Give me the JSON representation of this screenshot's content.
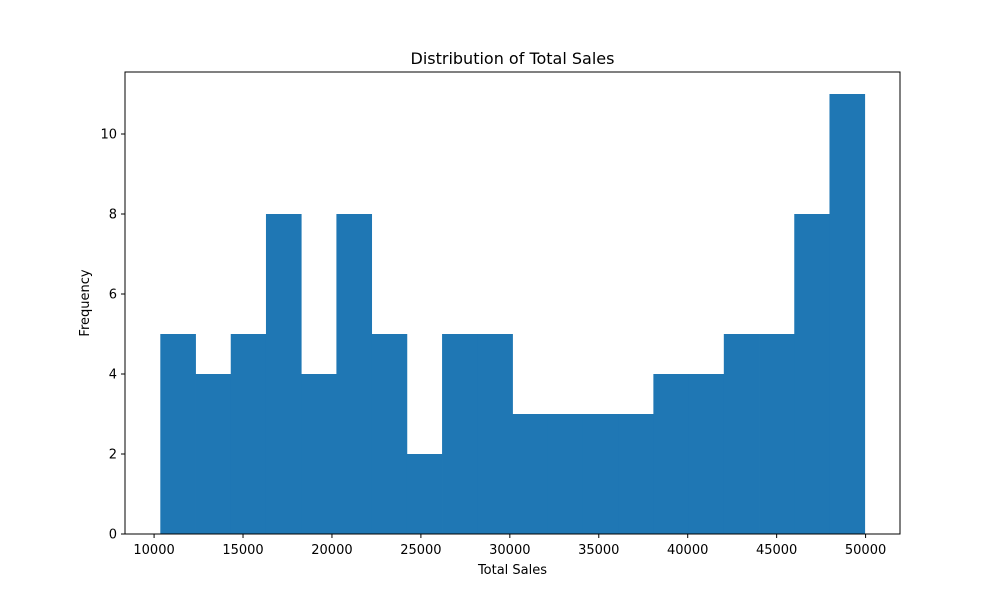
{
  "chart_data": {
    "type": "bar",
    "title": "Distribution of Total Sales",
    "xlabel": "Total Sales",
    "ylabel": "Frequency",
    "bin_edges": [
      10350,
      12330,
      14310,
      16290,
      18270,
      20250,
      22230,
      24210,
      26190,
      28170,
      30150,
      32130,
      34110,
      36090,
      38070,
      40050,
      42030,
      44010,
      45990,
      47970,
      49950
    ],
    "values": [
      5,
      4,
      5,
      8,
      4,
      8,
      5,
      2,
      5,
      5,
      3,
      3,
      3,
      3,
      4,
      4,
      5,
      5,
      8,
      11
    ],
    "xlim": [
      8365,
      51935
    ],
    "ylim": [
      0,
      11.55
    ],
    "xticks": [
      10000,
      15000,
      20000,
      25000,
      30000,
      35000,
      40000,
      45000,
      50000
    ],
    "yticks": [
      0,
      2,
      4,
      6,
      8,
      10
    ],
    "grid": false,
    "colors": {
      "bar": "#1f77b4"
    }
  }
}
